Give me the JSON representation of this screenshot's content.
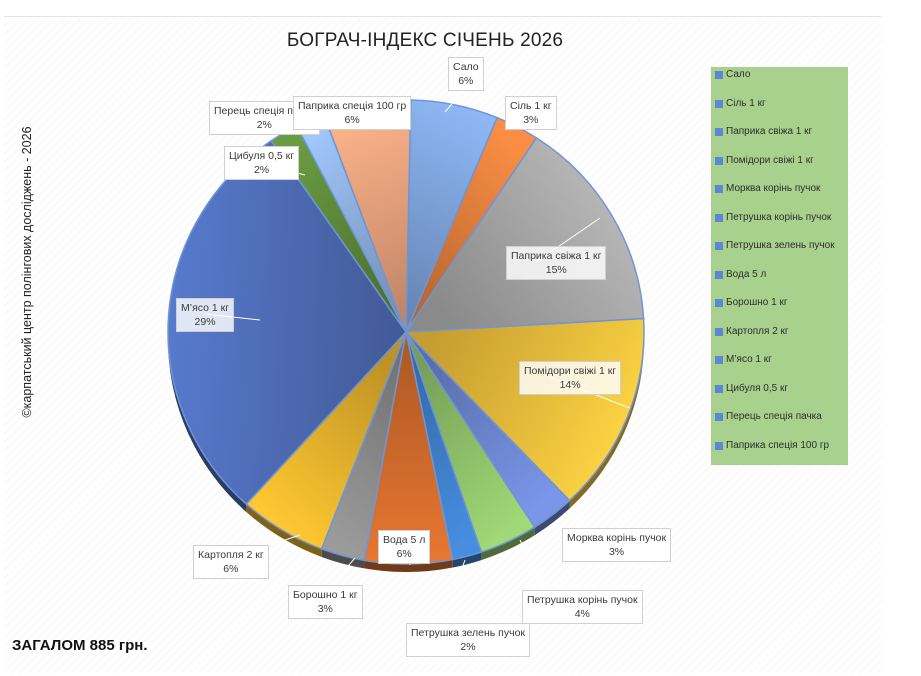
{
  "title": "БОГРАЧ-ІНДЕКС СІЧЕНЬ 2026",
  "copyright": "©карпатський центр полінгових досліджень - 2026",
  "total": "ЗАГАЛОМ 885 грн.",
  "chart_data": {
    "type": "pie",
    "title": "БОГРАЧ-ІНДЕКС СІЧЕНЬ 2026",
    "legend_position": "right",
    "slices": [
      {
        "label": "Сало",
        "value": 6,
        "pct_label": "6%",
        "color": "#7fa4dc"
      },
      {
        "label": "Сіль 1 кг",
        "value": 3,
        "pct_label": "3%",
        "color": "#e07f3d"
      },
      {
        "label": "Паприка свіжа 1 кг",
        "value": 15,
        "pct_label": "15%",
        "color": "#a8a8a8"
      },
      {
        "label": "Помідори свіжі 1 кг",
        "value": 14,
        "pct_label": "14%",
        "color": "#f2c03c"
      },
      {
        "label": "Морква корінь пучок",
        "value": 3,
        "pct_label": "3%",
        "color": "#6c86cf"
      },
      {
        "label": "Петрушка корінь пучок",
        "value": 4,
        "pct_label": "4%",
        "color": "#8fc26a"
      },
      {
        "label": "Петрушка зелень пучок",
        "value": 2,
        "pct_label": "2%",
        "color": "#3f7fc9"
      },
      {
        "label": "Вода 5 л",
        "value": 6,
        "pct_label": "6%",
        "color": "#cf6a2c"
      },
      {
        "label": "Борошно 1 кг",
        "value": 3,
        "pct_label": "3%",
        "color": "#8a8a8a"
      },
      {
        "label": "Картопля 2 кг",
        "value": 6,
        "pct_label": "6%",
        "color": "#e6b32d"
      },
      {
        "label": "М’ясо 1 кг",
        "value": 29,
        "pct_label": "29%",
        "color": "#4f6db7"
      },
      {
        "label": "Цибуля 0,5 кг",
        "value": 2,
        "pct_label": "2%",
        "color": "#5e8a3a"
      },
      {
        "label": "Перець спеція пачка",
        "value": 2,
        "pct_label": "2%",
        "color": "#8fb1e0"
      },
      {
        "label": "Паприка спеція 100 гр",
        "value": 6,
        "pct_label": "6%",
        "color": "#eaa27c"
      }
    ]
  }
}
